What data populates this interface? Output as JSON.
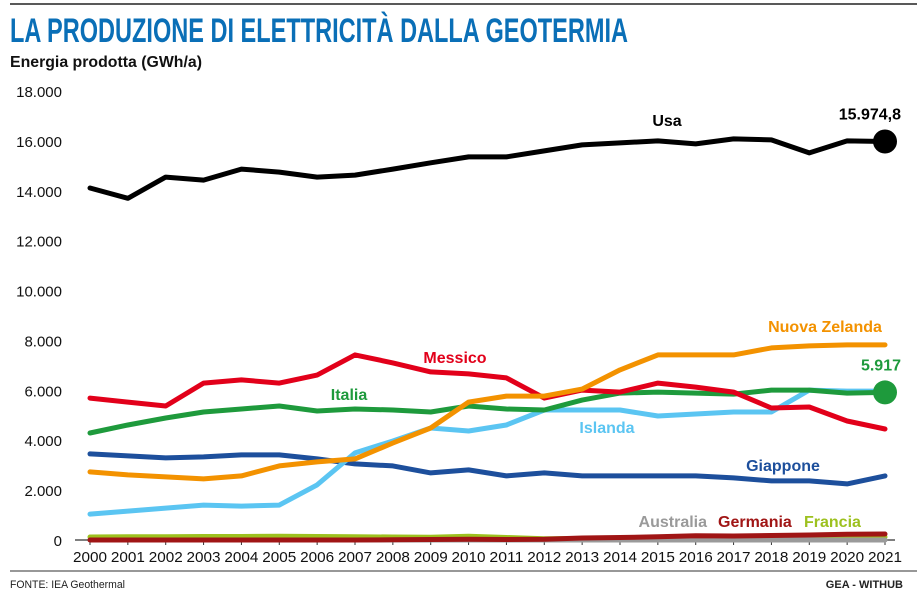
{
  "chart_data": {
    "type": "line",
    "title": "LA PRODUZIONE DI ELETTRICITÀ DALLA GEOTERMIA",
    "ylabel": "Energia prodotta (GWh/a)",
    "xlabel": "",
    "ylim": [
      0,
      18000
    ],
    "yticks": [
      "0",
      "2.000",
      "4.000",
      "6.000",
      "8.000",
      "10.000",
      "12.000",
      "14.000",
      "16.000",
      "18.000"
    ],
    "ytick_values": [
      0,
      2000,
      4000,
      6000,
      8000,
      10000,
      12000,
      14000,
      16000,
      18000
    ],
    "x": [
      "2000",
      "2001",
      "2002",
      "2003",
      "2004",
      "2005",
      "2006",
      "2007",
      "2008",
      "2009",
      "2010",
      "2011",
      "2012",
      "2013",
      "2014",
      "2015",
      "2016",
      "2017",
      "2018",
      "2019",
      "2020",
      "2021"
    ],
    "grid": false,
    "series": [
      {
        "name": "Francia",
        "color": "#9dc11f",
        "values": [
          120,
          130,
          130,
          140,
          140,
          150,
          140,
          130,
          120,
          110,
          150,
          100,
          50,
          60,
          80,
          90,
          100,
          110,
          110,
          120,
          120,
          120
        ]
      },
      {
        "name": "Australia",
        "color": "#9a9a9a",
        "values": [
          0,
          0,
          0,
          0,
          0,
          0,
          0,
          0,
          0,
          0,
          0,
          0,
          0,
          0,
          0,
          0,
          0,
          0,
          0,
          0,
          0,
          0
        ]
      },
      {
        "name": "Germania",
        "color": "#a01515",
        "values": [
          0,
          0,
          0,
          0,
          0,
          0,
          0,
          0,
          10,
          20,
          30,
          20,
          30,
          80,
          100,
          130,
          170,
          160,
          180,
          200,
          230,
          240
        ]
      },
      {
        "name": "Giappone",
        "color": "#1d4f9c",
        "values": [
          3450,
          3370,
          3290,
          3330,
          3410,
          3410,
          3250,
          3050,
          2970,
          2690,
          2810,
          2570,
          2690,
          2570,
          2570,
          2570,
          2570,
          2490,
          2370,
          2370,
          2250,
          2570
        ]
      },
      {
        "name": "Islanda",
        "color": "#5bc5f2",
        "values": [
          1040,
          1160,
          1280,
          1400,
          1360,
          1400,
          2210,
          3490,
          3970,
          4490,
          4370,
          4610,
          5210,
          5210,
          5210,
          4970,
          5050,
          5130,
          5130,
          6010,
          5970,
          5970
        ]
      },
      {
        "name": "Italia",
        "color": "#1e9a3c",
        "values": [
          4290,
          4610,
          4890,
          5130,
          5250,
          5370,
          5170,
          5250,
          5210,
          5130,
          5370,
          5250,
          5210,
          5610,
          5890,
          5930,
          5890,
          5850,
          6010,
          6010,
          5890,
          5917
        ]
      },
      {
        "name": "Messico",
        "color": "#e2001a",
        "values": [
          5690,
          5530,
          5370,
          6290,
          6420,
          6290,
          6610,
          7420,
          7100,
          6740,
          6660,
          6500,
          5690,
          6010,
          5930,
          6290,
          6130,
          5930,
          5290,
          5330,
          4770,
          4450
        ]
      },
      {
        "name": "Nuova Zelanda",
        "color": "#f39200",
        "values": [
          2730,
          2610,
          2530,
          2450,
          2570,
          2970,
          3130,
          3250,
          3890,
          4490,
          5530,
          5770,
          5770,
          6050,
          6820,
          7420,
          7420,
          7420,
          7700,
          7780,
          7820,
          7820
        ]
      },
      {
        "name": "Usa",
        "color": "#000000",
        "values": [
          14110,
          13700,
          14550,
          14430,
          14870,
          14750,
          14550,
          14630,
          14870,
          15120,
          15360,
          15360,
          15600,
          15840,
          15920,
          16000,
          15880,
          16080,
          16040,
          15520,
          16000,
          15974.8
        ]
      }
    ],
    "annotations": [
      {
        "series": "Usa",
        "text": "15.974,8",
        "color": "#000000"
      },
      {
        "series": "Italia",
        "text": "5.917",
        "color": "#1e9a3c"
      }
    ]
  },
  "footer": {
    "source": "FONTE: IEA Geothermal",
    "credit": "GEA - WITHUB"
  }
}
